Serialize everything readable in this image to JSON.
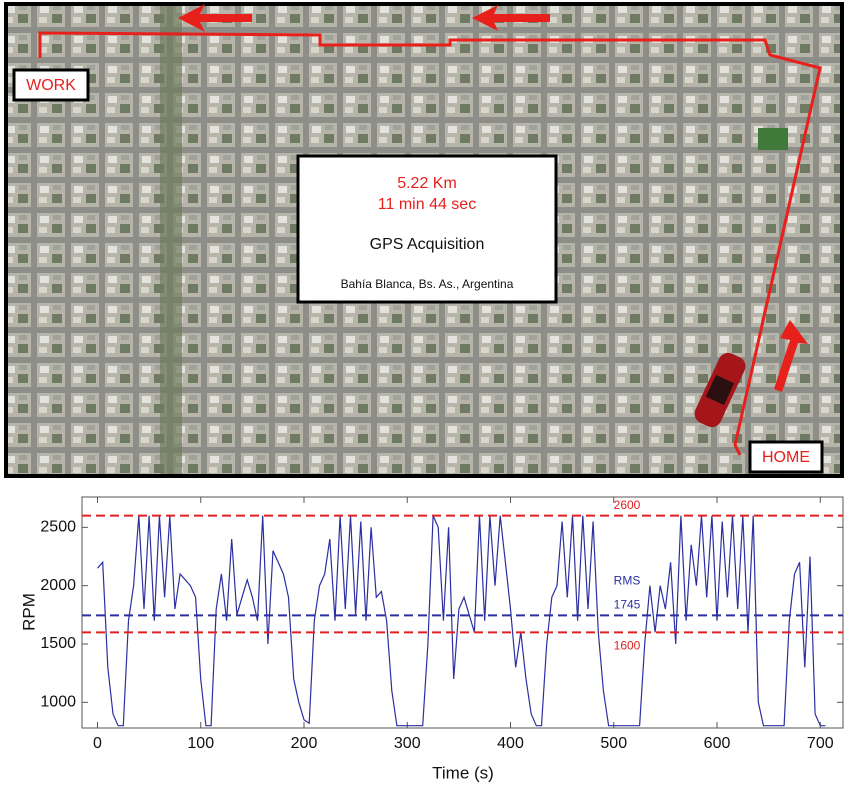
{
  "map": {
    "labels": {
      "work": "WORK",
      "home": "HOME"
    },
    "info_box": {
      "distance": "5.22 Km",
      "duration": "11 min 44 sec",
      "title": "GPS Acquisition",
      "location": "Bahía Blanca, Bs. As., Argentina"
    }
  },
  "chart_data": {
    "type": "line",
    "xlabel": "Time (s)",
    "ylabel": "RPM",
    "x": [
      0,
      5,
      10,
      15,
      20,
      25,
      30,
      35,
      40,
      45,
      50,
      55,
      60,
      65,
      70,
      75,
      80,
      85,
      90,
      95,
      100,
      105,
      110,
      115,
      120,
      125,
      130,
      135,
      140,
      145,
      150,
      155,
      160,
      165,
      170,
      175,
      180,
      185,
      190,
      195,
      200,
      205,
      210,
      215,
      220,
      225,
      230,
      235,
      240,
      245,
      250,
      255,
      260,
      265,
      270,
      275,
      280,
      285,
      290,
      295,
      300,
      305,
      310,
      315,
      320,
      325,
      330,
      335,
      340,
      345,
      350,
      355,
      360,
      365,
      370,
      375,
      380,
      385,
      390,
      395,
      400,
      405,
      410,
      415,
      420,
      425,
      430,
      435,
      440,
      445,
      450,
      455,
      460,
      465,
      470,
      475,
      480,
      485,
      490,
      495,
      500,
      505,
      510,
      515,
      520,
      525,
      530,
      535,
      540,
      545,
      550,
      555,
      560,
      565,
      570,
      575,
      580,
      585,
      590,
      595,
      600,
      605,
      610,
      615,
      620,
      625,
      630,
      635,
      640,
      645,
      650,
      655,
      660,
      665,
      670,
      675,
      680,
      685,
      690,
      695,
      700,
      705
    ],
    "series": [
      {
        "color": "#2b2fa0",
        "values": [
          2150,
          2200,
          1300,
          900,
          800,
          800,
          1700,
          2000,
          2600,
          1800,
          2600,
          1700,
          2600,
          1900,
          2600,
          1800,
          2100,
          2050,
          2000,
          1900,
          1200,
          800,
          800,
          1800,
          2100,
          1700,
          2400,
          1750,
          1900,
          2050,
          1900,
          1700,
          2600,
          1500,
          2300,
          2200,
          2100,
          1900,
          1200,
          1000,
          850,
          820,
          1700,
          2000,
          2100,
          2400,
          1700,
          2600,
          1800,
          2600,
          1750,
          2550,
          1700,
          2500,
          1900,
          1950,
          1700,
          1100,
          800,
          800,
          800,
          800,
          800,
          800,
          1500,
          2600,
          2500,
          1700,
          2500,
          1200,
          1800,
          1900,
          1750,
          1600,
          2600,
          1700,
          2600,
          2000,
          2600,
          2200,
          1800,
          1300,
          1600,
          1200,
          900,
          800,
          800,
          1500,
          1900,
          2000,
          2550,
          1900,
          2600,
          1700,
          2600,
          1800,
          2550,
          1600,
          1100,
          800,
          800,
          800,
          800,
          800,
          800,
          800,
          1500,
          2000,
          1600,
          2000,
          1800,
          2200,
          1500,
          2600,
          1700,
          2350,
          2000,
          2600,
          1900,
          2600,
          1700,
          2550,
          1900,
          2600,
          1800,
          2600,
          1600,
          2600,
          1000,
          800,
          800,
          800,
          800,
          800,
          1700,
          2100,
          2200,
          1300,
          2250,
          900,
          800,
          800
        ]
      }
    ],
    "reference_lines": [
      {
        "value": 2600,
        "label": "2600",
        "color": "#e02020"
      },
      {
        "value": 1745,
        "name": "RMS",
        "label": "1745",
        "color": "#2b2fa0"
      },
      {
        "value": 1600,
        "label": "1600",
        "color": "#e02020"
      }
    ],
    "xlim": [
      -15,
      722
    ],
    "ylim": [
      780,
      2760
    ],
    "xticks": [
      0,
      100,
      200,
      300,
      400,
      500,
      600,
      700
    ],
    "yticks": [
      1000,
      1500,
      2000,
      2500
    ]
  }
}
